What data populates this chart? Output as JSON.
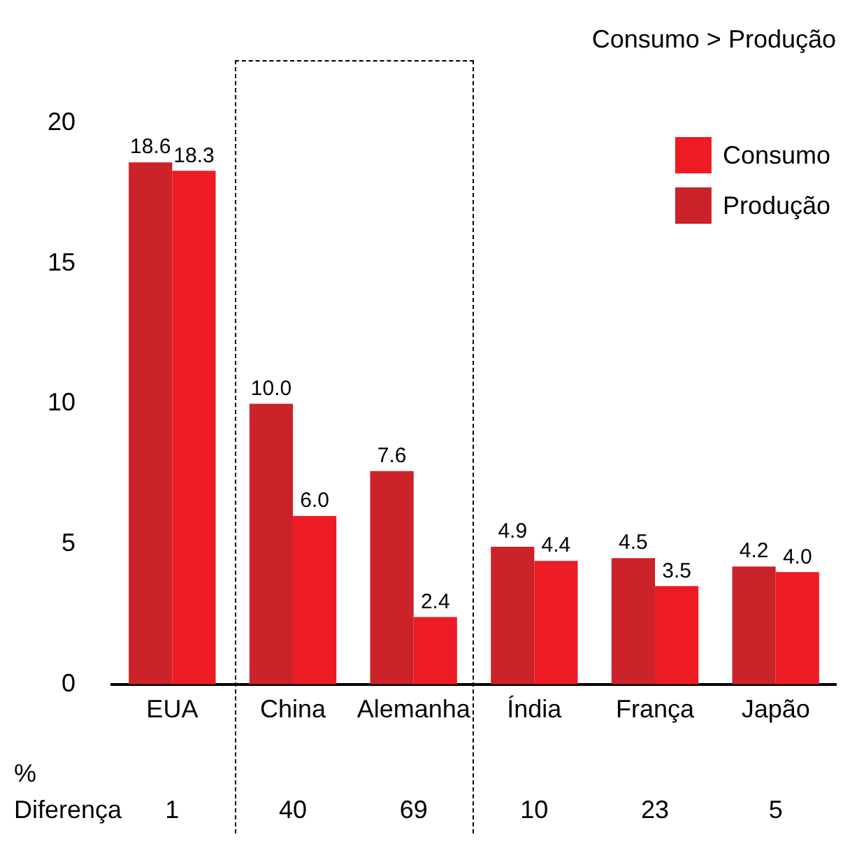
{
  "chart_data": {
    "type": "bar",
    "categories": [
      "EUA",
      "China",
      "Alemanha",
      "Índia",
      "França",
      "Japão"
    ],
    "series": [
      {
        "name": "Produção",
        "color": "#cc2229",
        "values": [
          18.6,
          10.0,
          7.6,
          4.9,
          4.5,
          4.2
        ],
        "value_labels": [
          "18.6",
          "10.0",
          "7.6",
          "4.9",
          "4.5",
          "4.2"
        ]
      },
      {
        "name": "Consumo",
        "color": "#ed1c24",
        "values": [
          18.3,
          6.0,
          2.4,
          4.4,
          3.5,
          4.0
        ],
        "value_labels": [
          "18.3",
          "6.0",
          "2.4",
          "4.4",
          "3.5",
          "4.0"
        ]
      }
    ],
    "ylim": [
      0,
      20
    ],
    "yticks": [
      0,
      5,
      10,
      15,
      20
    ],
    "grid": false,
    "legend": "top right",
    "annotations": [
      "Consumo > Produção",
      "% Diferença",
      "1",
      "40",
      "69",
      "10",
      "23",
      "5"
    ]
  }
}
